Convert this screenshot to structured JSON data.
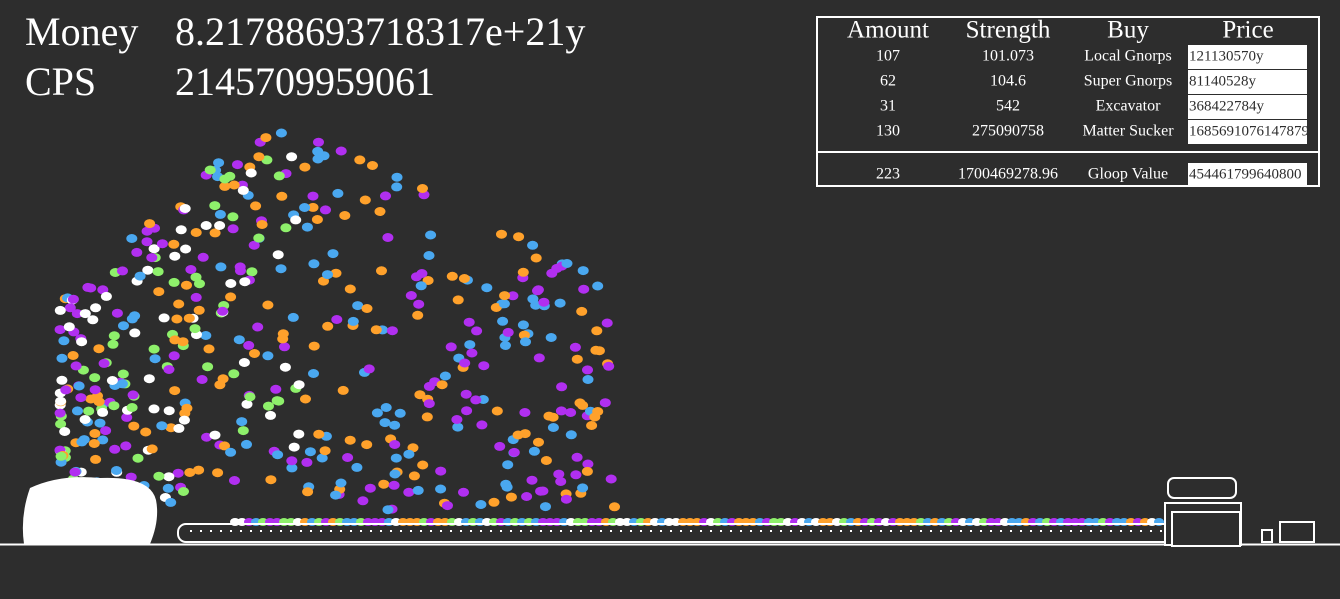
{
  "stats": [
    {
      "label": "Money",
      "value": "8.21788693718317e+21y"
    },
    {
      "label": "CPS",
      "value": "2145709959061"
    }
  ],
  "table": {
    "header": [
      "Amount",
      "Strength",
      "Buy",
      "Price"
    ],
    "rows": [
      [
        "107",
        "101.073",
        "Local Gnorps",
        "121130570y"
      ],
      [
        "62",
        "104.6",
        "Super Gnorps",
        "81140528y"
      ],
      [
        "31",
        "542",
        "Excavator",
        "368422784y"
      ],
      [
        "130",
        "275090758",
        "Matter Sucker",
        "1685691076147879"
      ]
    ],
    "footer": [
      "223",
      "1700469278.96",
      "Gloop Value",
      "454461799640800"
    ]
  }
}
